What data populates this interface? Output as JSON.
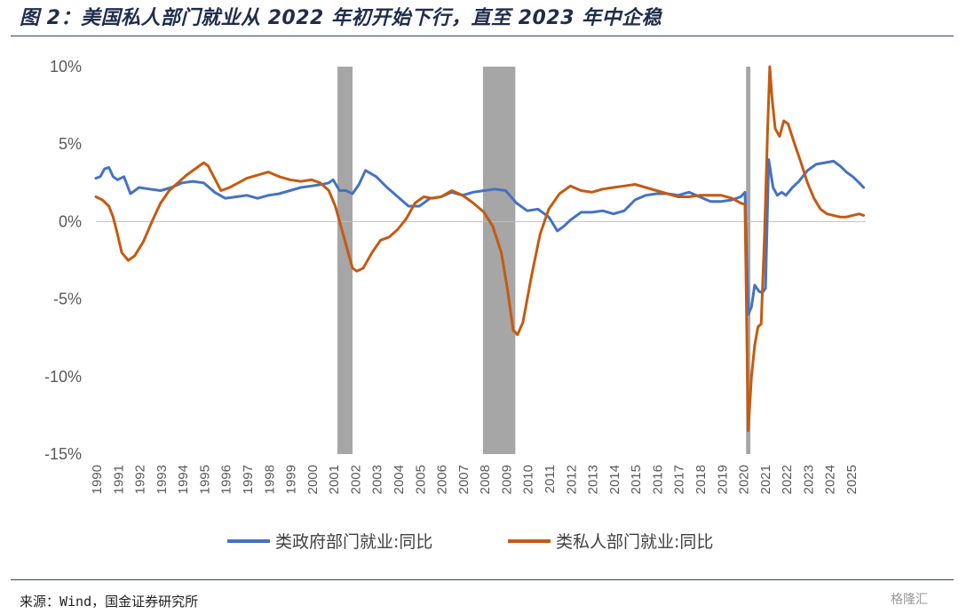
{
  "figure": {
    "title": "图 2：美国私人部门就业从 2022 年初开始下行，直至 2023 年中企稳",
    "source": "来源：Wind，国金证券研究所",
    "watermark": "格隆汇"
  },
  "chart_data": {
    "type": "line",
    "ylim": [
      -15,
      10
    ],
    "y_ticks": [
      "10%",
      "5%",
      "0%",
      "-5%",
      "-10%",
      "-15%"
    ],
    "y_tick_values": [
      10,
      5,
      0,
      -5,
      -10,
      -15
    ],
    "x_tick_labels": [
      "1990",
      "1991",
      "1992",
      "1993",
      "1994",
      "1995",
      "1996",
      "1997",
      "1998",
      "1999",
      "2000",
      "2001",
      "2002",
      "2003",
      "2004",
      "2005",
      "2006",
      "2007",
      "2008",
      "2009",
      "2010",
      "2011",
      "2012",
      "2013",
      "2014",
      "2015",
      "2016",
      "2017",
      "2018",
      "2019",
      "2020",
      "2021",
      "2022",
      "2023",
      "2024",
      "2025"
    ],
    "xlim": [
      1990.0,
      2025.7
    ],
    "grid": false,
    "legend_position": "bottom",
    "recession_bands": [
      [
        2001.2,
        2001.9
      ],
      [
        2007.95,
        2009.45
      ],
      [
        2020.15,
        2020.35
      ]
    ],
    "colors": {
      "government": "#4472C4",
      "private": "#C55A11",
      "recession": "#A6A6A6"
    },
    "series": [
      {
        "name": "类政府部门就业:同比",
        "key": "government",
        "x": [
          1990.0,
          1990.2,
          1990.4,
          1990.6,
          1990.8,
          1991.0,
          1991.3,
          1991.6,
          1992.0,
          1992.5,
          1993.0,
          1993.5,
          1994.0,
          1994.5,
          1995.0,
          1995.5,
          1996.0,
          1996.5,
          1997.0,
          1997.5,
          1998.0,
          1998.5,
          1999.0,
          1999.5,
          2000.0,
          2000.5,
          2000.8,
          2001.0,
          2001.3,
          2001.6,
          2001.9,
          2002.2,
          2002.5,
          2003.0,
          2003.5,
          2004.0,
          2004.5,
          2005.0,
          2005.5,
          2006.0,
          2006.5,
          2007.0,
          2007.5,
          2008.0,
          2008.5,
          2009.0,
          2009.5,
          2010.0,
          2010.5,
          2011.0,
          2011.4,
          2011.7,
          2012.0,
          2012.5,
          2013.0,
          2013.5,
          2014.0,
          2014.5,
          2015.0,
          2015.5,
          2016.0,
          2016.5,
          2017.0,
          2017.5,
          2018.0,
          2018.5,
          2019.0,
          2019.5,
          2019.9,
          2020.1,
          2020.25,
          2020.4,
          2020.55,
          2020.75,
          2020.9,
          2021.05,
          2021.2,
          2021.4,
          2021.6,
          2021.8,
          2022.0,
          2022.3,
          2022.6,
          2023.0,
          2023.4,
          2023.8,
          2024.2,
          2024.5,
          2024.8,
          2025.1,
          2025.4,
          2025.6
        ],
        "values": [
          2.8,
          2.9,
          3.4,
          3.5,
          2.9,
          2.7,
          2.9,
          1.8,
          2.2,
          2.1,
          2.0,
          2.2,
          2.5,
          2.6,
          2.5,
          1.9,
          1.5,
          1.6,
          1.7,
          1.5,
          1.7,
          1.8,
          2.0,
          2.2,
          2.3,
          2.4,
          2.5,
          2.7,
          2.0,
          2.0,
          1.8,
          2.4,
          3.3,
          2.9,
          2.2,
          1.6,
          1.0,
          1.0,
          1.5,
          1.6,
          1.9,
          1.7,
          1.9,
          2.0,
          2.1,
          2.0,
          1.2,
          0.7,
          0.8,
          0.3,
          -0.6,
          -0.3,
          0.1,
          0.6,
          0.6,
          0.7,
          0.5,
          0.7,
          1.4,
          1.7,
          1.8,
          1.8,
          1.7,
          1.9,
          1.6,
          1.3,
          1.3,
          1.4,
          1.6,
          1.9,
          -6.0,
          -5.5,
          -4.1,
          -4.5,
          -4.6,
          -4.3,
          4.0,
          2.2,
          1.7,
          1.9,
          1.7,
          2.2,
          2.6,
          3.3,
          3.7,
          3.8,
          3.9,
          3.6,
          3.2,
          2.9,
          2.5,
          2.2
        ]
      },
      {
        "name": "类私人部门就业:同比",
        "key": "private",
        "x": [
          1990.0,
          1990.3,
          1990.6,
          1990.8,
          1991.0,
          1991.2,
          1991.5,
          1991.8,
          1992.2,
          1992.6,
          1993.0,
          1993.4,
          1993.8,
          1994.2,
          1994.6,
          1995.0,
          1995.2,
          1995.5,
          1995.8,
          1996.2,
          1996.6,
          1997.0,
          1997.5,
          1998.0,
          1998.5,
          1999.0,
          1999.5,
          2000.0,
          2000.4,
          2000.8,
          2001.1,
          2001.4,
          2001.7,
          2001.9,
          2002.1,
          2002.4,
          2002.8,
          2003.2,
          2003.6,
          2004.0,
          2004.4,
          2004.8,
          2005.2,
          2005.6,
          2006.0,
          2006.5,
          2007.0,
          2007.5,
          2008.0,
          2008.4,
          2008.8,
          2009.1,
          2009.35,
          2009.55,
          2009.8,
          2010.2,
          2010.6,
          2011.0,
          2011.5,
          2012.0,
          2012.5,
          2013.0,
          2013.5,
          2014.0,
          2014.5,
          2015.0,
          2015.5,
          2016.0,
          2016.5,
          2017.0,
          2017.5,
          2018.0,
          2018.5,
          2019.0,
          2019.5,
          2019.9,
          2020.1,
          2020.25,
          2020.4,
          2020.55,
          2020.7,
          2020.85,
          2021.0,
          2021.15,
          2021.25,
          2021.35,
          2021.5,
          2021.7,
          2021.9,
          2022.1,
          2022.4,
          2022.7,
          2023.0,
          2023.3,
          2023.6,
          2023.9,
          2024.2,
          2024.5,
          2024.8,
          2025.1,
          2025.4,
          2025.6
        ],
        "values": [
          1.6,
          1.4,
          1.0,
          0.3,
          -0.8,
          -2.0,
          -2.5,
          -2.2,
          -1.3,
          0.0,
          1.2,
          2.0,
          2.5,
          3.0,
          3.4,
          3.8,
          3.6,
          2.8,
          2.0,
          2.2,
          2.5,
          2.8,
          3.0,
          3.2,
          2.9,
          2.7,
          2.6,
          2.7,
          2.5,
          2.0,
          1.0,
          -0.5,
          -2.0,
          -3.0,
          -3.2,
          -3.0,
          -2.0,
          -1.2,
          -1.0,
          -0.5,
          0.2,
          1.2,
          1.6,
          1.5,
          1.6,
          2.0,
          1.7,
          1.2,
          0.6,
          -0.3,
          -2.0,
          -4.5,
          -7.0,
          -7.3,
          -6.5,
          -3.5,
          -0.8,
          0.8,
          1.8,
          2.3,
          2.0,
          1.9,
          2.1,
          2.2,
          2.3,
          2.4,
          2.2,
          2.0,
          1.8,
          1.6,
          1.6,
          1.7,
          1.7,
          1.7,
          1.5,
          1.2,
          1.1,
          -13.5,
          -10.0,
          -8.0,
          -6.8,
          -6.6,
          -1.0,
          6.0,
          10.0,
          8.0,
          6.0,
          5.5,
          6.5,
          6.3,
          5.0,
          3.8,
          2.5,
          1.5,
          0.8,
          0.5,
          0.4,
          0.3,
          0.3,
          0.4,
          0.5,
          0.4
        ]
      }
    ]
  }
}
